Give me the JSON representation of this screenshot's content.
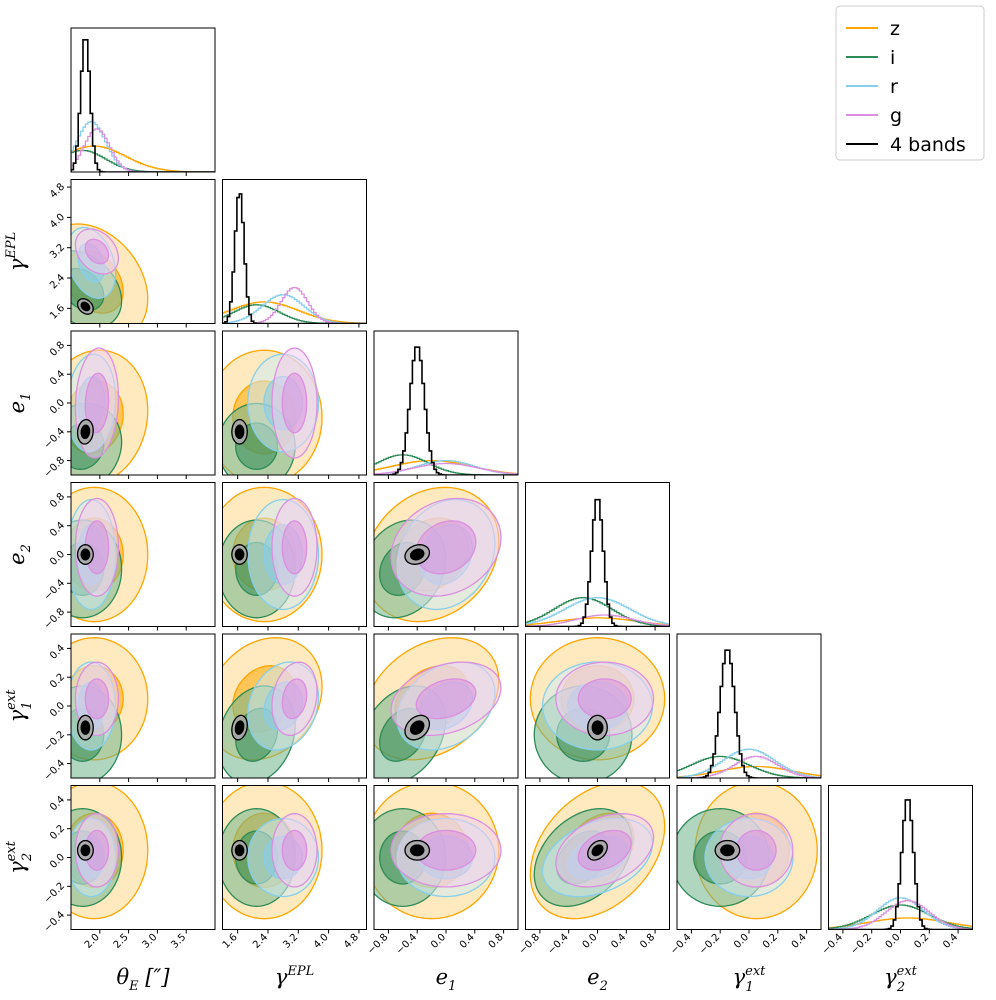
{
  "chart_data": {
    "type": "corner",
    "params": [
      {
        "key": "theta_E",
        "label": "θ",
        "sub": "E",
        "unit": " [″]",
        "range": [
          1.5,
          4.0
        ],
        "ticks": [
          2.0,
          2.5,
          3.0,
          3.5
        ],
        "tick_labels": [
          "2.0",
          "2.5",
          "3.0",
          "3.5"
        ],
        "show_y": false
      },
      {
        "key": "gamma_EPL",
        "label": "γ",
        "sup": "EPL",
        "range": [
          1.2,
          5.0
        ],
        "ticks": [
          1.6,
          2.4,
          3.2,
          4.0,
          4.8
        ],
        "tick_labels": [
          "1.6",
          "2.4",
          "3.2",
          "4.0",
          "4.8"
        ],
        "show_y": true
      },
      {
        "key": "e1",
        "label": "e",
        "sub": "1",
        "range": [
          -1.0,
          1.0
        ],
        "ticks": [
          -0.8,
          -0.4,
          0.0,
          0.4,
          0.8
        ],
        "tick_labels": [
          "−0.8",
          "−0.4",
          "0.0",
          "0.4",
          "0.8"
        ],
        "show_y": true
      },
      {
        "key": "e2",
        "label": "e",
        "sub": "2",
        "range": [
          -1.0,
          1.0
        ],
        "ticks": [
          -0.8,
          -0.4,
          0.0,
          0.4,
          0.8
        ],
        "tick_labels": [
          "−0.8",
          "−0.4",
          "0.0",
          "0.4",
          "0.8"
        ],
        "show_y": true
      },
      {
        "key": "gamma1_ext",
        "label": "γ",
        "sup": "ext",
        "sub": "1",
        "range": [
          -0.5,
          0.5
        ],
        "ticks": [
          -0.4,
          -0.2,
          0.0,
          0.2,
          0.4
        ],
        "tick_labels": [
          "−0.4",
          "−0.2",
          "0.0",
          "0.2",
          "0.4"
        ],
        "show_y": true
      },
      {
        "key": "gamma2_ext",
        "label": "γ",
        "sup": "ext",
        "sub": "2",
        "range": [
          -0.5,
          0.5
        ],
        "ticks": [
          -0.4,
          -0.2,
          0.0,
          0.2,
          0.4
        ],
        "tick_labels": [
          "−0.4",
          "−0.2",
          "0.0",
          "0.2",
          "0.4"
        ],
        "show_y": true
      }
    ],
    "series": [
      {
        "name": "z",
        "color": "#ffa500",
        "fill": "#ffd88a",
        "mean": [
          1.9,
          2.3,
          -0.2,
          0.0,
          0.05,
          0.05
        ],
        "sd": [
          0.55,
          0.9,
          0.55,
          0.55,
          0.25,
          0.28
        ],
        "peak": [
          0.18,
          0.15,
          0.1,
          0.06,
          0.08,
          0.08
        ]
      },
      {
        "name": "i",
        "color": "#2e8b57",
        "fill": "#6fb58d",
        "mean": [
          1.7,
          2.1,
          -0.6,
          -0.2,
          -0.2,
          0.0
        ],
        "sd": [
          0.4,
          0.6,
          0.35,
          0.4,
          0.2,
          0.2
        ],
        "peak": [
          0.15,
          0.13,
          0.14,
          0.2,
          0.15,
          0.17
        ]
      },
      {
        "name": "r",
        "color": "#87ceeb",
        "fill": "#cdeaf4",
        "mean": [
          1.85,
          2.8,
          0.0,
          0.0,
          0.0,
          0.0
        ],
        "sd": [
          0.25,
          0.55,
          0.4,
          0.45,
          0.18,
          0.16
        ],
        "peak": [
          0.35,
          0.2,
          0.1,
          0.2,
          0.2,
          0.22
        ]
      },
      {
        "name": "g",
        "color": "#da8fdf",
        "fill": "#f0cdf0",
        "mean": [
          1.95,
          3.1,
          0.0,
          0.1,
          0.05,
          0.05
        ],
        "sd": [
          0.22,
          0.35,
          0.45,
          0.4,
          0.15,
          0.15
        ],
        "peak": [
          0.3,
          0.25,
          0.08,
          0.08,
          0.15,
          0.2
        ]
      },
      {
        "name": "4 bands",
        "color": "#000000",
        "fill": "#a9a9a9",
        "mean": [
          1.75,
          1.65,
          -0.4,
          0.0,
          -0.15,
          0.05
        ],
        "sd": [
          0.08,
          0.12,
          0.1,
          0.08,
          0.05,
          0.04
        ],
        "peak": [
          0.95,
          0.92,
          0.9,
          0.9,
          0.9,
          0.92
        ]
      }
    ],
    "correlations": [
      {
        "i": 0,
        "j": 1,
        "rho": -0.3
      },
      {
        "i": 0,
        "j": 2,
        "rho": 0.1
      },
      {
        "i": 2,
        "j": 3,
        "rho": 0.2
      },
      {
        "i": 1,
        "j": 4,
        "rho": 0.2
      },
      {
        "i": 2,
        "j": 4,
        "rho": 0.3
      },
      {
        "i": 3,
        "j": 5,
        "rho": 0.35
      }
    ],
    "legend_placement": "top-right",
    "grid": false
  }
}
